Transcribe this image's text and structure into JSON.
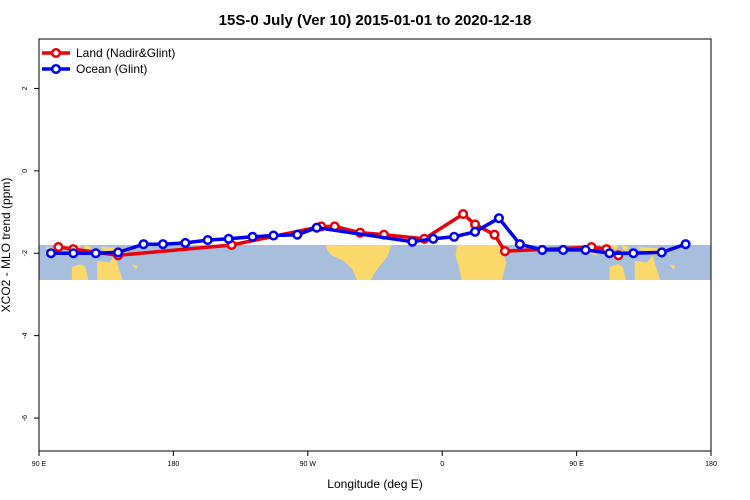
{
  "chart_data": {
    "type": "line",
    "title": "15S-0 July (Ver 10)   2015-01-01 to 2020-12-18",
    "xlabel": "Longitude (deg E)",
    "ylabel": "XCO2 - MLO trend (ppm)",
    "xlim": [
      90,
      540
    ],
    "ylim": [
      -6.8,
      3.2
    ],
    "x_ticks": [
      {
        "value": 90,
        "label": "90 E"
      },
      {
        "value": 180,
        "label": "180"
      },
      {
        "value": 270,
        "label": "90 W"
      },
      {
        "value": 360,
        "label": "0"
      },
      {
        "value": 450,
        "label": "90 E"
      },
      {
        "value": 540,
        "label": "180"
      }
    ],
    "y_ticks": [
      {
        "value": 2,
        "label": "2"
      },
      {
        "value": 0,
        "label": "0"
      },
      {
        "value": -2,
        "label": "-2"
      },
      {
        "value": -4,
        "label": "-4"
      },
      {
        "value": -6,
        "label": "-6"
      }
    ],
    "legend_position": "top-left",
    "map_band": {
      "lat_range": "15S-0",
      "y_range": [
        -2.65,
        -1.8
      ],
      "ocean_color": "#a7bfdd",
      "land_color": "#fcd86b"
    },
    "series": [
      {
        "name": "Land (Nadir&Glint)",
        "color": "#e8000b",
        "x": [
          103,
          113,
          143,
          219,
          279,
          288,
          305,
          321,
          348,
          374,
          382,
          395,
          402,
          460,
          470,
          478
        ],
        "y": [
          -1.85,
          -1.9,
          -2.05,
          -1.8,
          -1.35,
          -1.35,
          -1.5,
          -1.55,
          -1.65,
          -1.05,
          -1.3,
          -1.55,
          -1.95,
          -1.85,
          -1.9,
          -2.05
        ]
      },
      {
        "name": "Ocean (Glint)",
        "color": "#0000f0",
        "x": [
          98,
          113,
          128,
          143,
          160,
          173,
          188,
          203,
          217,
          233,
          247,
          263,
          276,
          340,
          354,
          368,
          382,
          398,
          412,
          427,
          441,
          456,
          472,
          488,
          507,
          523
        ],
        "y": [
          -2.0,
          -2.0,
          -2.0,
          -1.98,
          -1.78,
          -1.78,
          -1.75,
          -1.68,
          -1.65,
          -1.6,
          -1.57,
          -1.55,
          -1.38,
          -1.72,
          -1.65,
          -1.6,
          -1.48,
          -1.15,
          -1.78,
          -1.92,
          -1.92,
          -1.92,
          -2.0,
          -2.0,
          -1.98,
          -1.78
        ]
      }
    ]
  }
}
